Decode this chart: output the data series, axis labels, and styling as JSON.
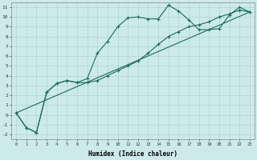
{
  "xlabel": "Humidex (Indice chaleur)",
  "background_color": "#cdeaea",
  "grid_color": "#afd4d4",
  "line_color": "#1a6b5a",
  "xlim": [
    -0.5,
    23.5
  ],
  "ylim": [
    -2.5,
    11.5
  ],
  "xticks": [
    0,
    1,
    2,
    3,
    4,
    5,
    6,
    7,
    8,
    9,
    10,
    11,
    12,
    13,
    14,
    15,
    16,
    17,
    18,
    19,
    20,
    21,
    22,
    23
  ],
  "yticks": [
    -2,
    -1,
    0,
    1,
    2,
    3,
    4,
    5,
    6,
    7,
    8,
    9,
    10,
    11
  ],
  "series1_x": [
    0,
    1,
    2,
    3,
    4,
    5,
    6,
    7,
    8,
    9,
    10,
    11,
    12,
    13,
    14,
    15,
    16,
    17,
    18,
    19,
    20,
    21,
    22,
    23
  ],
  "series1_y": [
    0.2,
    -1.3,
    -1.8,
    2.3,
    3.2,
    3.5,
    3.3,
    3.7,
    6.3,
    7.5,
    9.0,
    9.9,
    10.0,
    9.8,
    9.8,
    11.2,
    10.6,
    9.7,
    8.7,
    8.7,
    8.8,
    10.2,
    11.0,
    10.5
  ],
  "series2_x": [
    0,
    1,
    2,
    3,
    4,
    5,
    6,
    7,
    8,
    9,
    10,
    11,
    12,
    13,
    14,
    15,
    16,
    17,
    18,
    19,
    20,
    21,
    22,
    23
  ],
  "series2_y": [
    0.2,
    -1.3,
    -1.8,
    2.3,
    3.2,
    3.5,
    3.3,
    3.3,
    3.5,
    4.0,
    4.5,
    5.0,
    5.5,
    6.3,
    7.2,
    8.0,
    8.5,
    9.0,
    9.2,
    9.5,
    10.0,
    10.3,
    10.7,
    10.5
  ],
  "series3_x": [
    0,
    23
  ],
  "series3_y": [
    0.2,
    10.5
  ]
}
